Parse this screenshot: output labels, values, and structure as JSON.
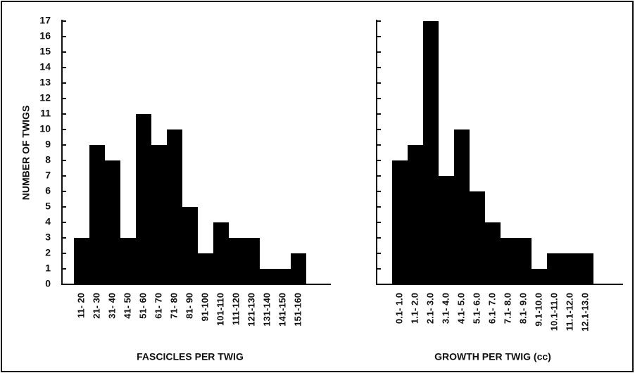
{
  "chart_data": [
    {
      "type": "bar",
      "y_label": "NUMBER OF TWIGS",
      "x_label": "FASCICLES PER TWIG",
      "categories": [
        "11- 20",
        "21- 30",
        "31- 40",
        "41- 50",
        "51- 60",
        "61- 70",
        "71- 80",
        "81- 90",
        "91-100",
        "101-110",
        "111-120",
        "121-130",
        "131-140",
        "141-150",
        "151-160"
      ],
      "values": [
        3,
        9,
        8,
        3,
        11,
        9,
        10,
        5,
        2,
        4,
        3,
        3,
        1,
        1,
        2
      ],
      "color": "#000000",
      "ylim": [
        0,
        17
      ],
      "yticks": [
        0,
        1,
        2,
        3,
        4,
        5,
        6,
        7,
        8,
        9,
        10,
        11,
        12,
        13,
        14,
        15,
        16,
        17
      ]
    },
    {
      "type": "bar",
      "x_label": "GROWTH PER TWIG (cc)",
      "categories": [
        "0.1- 1.0",
        "1.1- 2.0",
        "2.1- 3.0",
        "3.1- 4.0",
        "4.1- 5.0",
        "5.1- 6.0",
        "6.1- 7.0",
        "7.1- 8.0",
        "8.1- 9.0",
        "9.1-10.0",
        "10.1-11.0",
        "11.1-12.0",
        "12.1-13.0"
      ],
      "values": [
        8,
        9,
        17,
        7,
        10,
        6,
        4,
        3,
        3,
        1,
        2,
        2,
        2
      ],
      "color": "#000000",
      "ylim": [
        0,
        17
      ],
      "yticks": [
        0,
        1,
        2,
        3,
        4,
        5,
        6,
        7,
        8,
        9,
        10,
        11,
        12,
        13,
        14,
        15,
        16,
        17
      ]
    }
  ]
}
